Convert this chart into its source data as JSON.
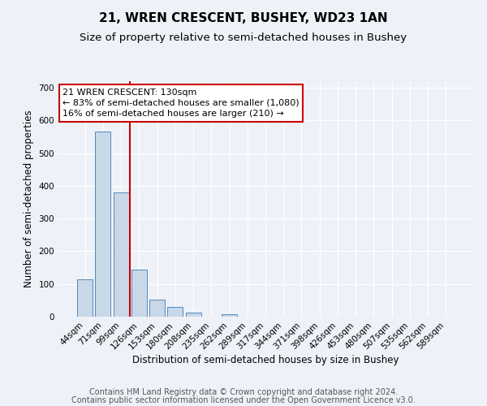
{
  "title": "21, WREN CRESCENT, BUSHEY, WD23 1AN",
  "subtitle": "Size of property relative to semi-detached houses in Bushey",
  "xlabel": "Distribution of semi-detached houses by size in Bushey",
  "ylabel": "Number of semi-detached properties",
  "footer_line1": "Contains HM Land Registry data © Crown copyright and database right 2024.",
  "footer_line2": "Contains public sector information licensed under the Open Government Licence v3.0.",
  "categories": [
    "44sqm",
    "71sqm",
    "99sqm",
    "126sqm",
    "153sqm",
    "180sqm",
    "208sqm",
    "235sqm",
    "262sqm",
    "289sqm",
    "317sqm",
    "344sqm",
    "371sqm",
    "398sqm",
    "426sqm",
    "453sqm",
    "480sqm",
    "507sqm",
    "535sqm",
    "562sqm",
    "589sqm"
  ],
  "values": [
    115,
    565,
    380,
    143,
    52,
    30,
    12,
    0,
    8,
    0,
    0,
    0,
    0,
    0,
    0,
    0,
    0,
    0,
    0,
    0,
    0
  ],
  "bar_color": "#c8d8e8",
  "bar_edge_color": "#5588bb",
  "highlight_color": "#cc0000",
  "annotation_line1": "21 WREN CRESCENT: 130sqm",
  "annotation_line2": "← 83% of semi-detached houses are smaller (1,080)",
  "annotation_line3": "16% of semi-detached houses are larger (210) →",
  "annotation_box_color": "#ffffff",
  "annotation_box_edge": "#cc0000",
  "ylim": [
    0,
    720
  ],
  "yticks": [
    0,
    100,
    200,
    300,
    400,
    500,
    600,
    700
  ],
  "background_color": "#eef2f8",
  "grid_color": "#ffffff",
  "title_fontsize": 11,
  "subtitle_fontsize": 9.5,
  "axis_label_fontsize": 8.5,
  "tick_fontsize": 7.5,
  "annotation_fontsize": 8,
  "footer_fontsize": 7
}
